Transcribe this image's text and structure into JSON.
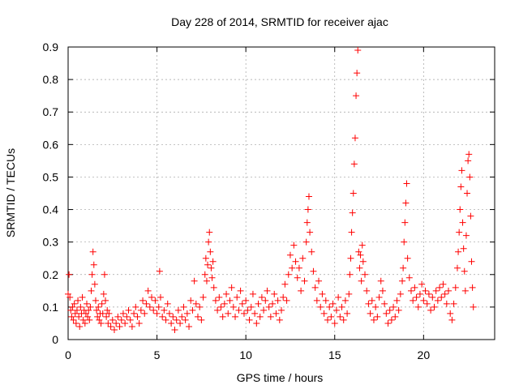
{
  "chart_data": {
    "type": "scatter",
    "title": "Day 228 of 2014, SRMTID for receiver ajac",
    "xlabel": "GPS time / hours",
    "ylabel": "SRMTID / TECUs",
    "xlim": [
      0,
      24
    ],
    "ylim": [
      0,
      0.9
    ],
    "x_ticks": [
      "0",
      "5",
      "10",
      "15",
      "20"
    ],
    "y_ticks": [
      "0",
      "0.1",
      "0.2",
      "0.3",
      "0.4",
      "0.5",
      "0.6",
      "0.7",
      "0.8",
      "0.9"
    ],
    "grid": true,
    "marker": "+",
    "color": "#ff0000",
    "series": [
      {
        "name": "ajac",
        "points": [
          [
            0.0,
            0.14
          ],
          [
            0.05,
            0.2
          ],
          [
            0.1,
            0.13
          ],
          [
            0.15,
            0.09
          ],
          [
            0.2,
            0.07
          ],
          [
            0.25,
            0.1
          ],
          [
            0.3,
            0.06
          ],
          [
            0.35,
            0.11
          ],
          [
            0.4,
            0.08
          ],
          [
            0.45,
            0.05
          ],
          [
            0.5,
            0.09
          ],
          [
            0.55,
            0.12
          ],
          [
            0.6,
            0.07
          ],
          [
            0.65,
            0.04
          ],
          [
            0.7,
            0.1
          ],
          [
            0.75,
            0.08
          ],
          [
            0.8,
            0.13
          ],
          [
            0.85,
            0.06
          ],
          [
            0.9,
            0.09
          ],
          [
            0.95,
            0.05
          ],
          [
            1.0,
            0.08
          ],
          [
            1.05,
            0.11
          ],
          [
            1.1,
            0.07
          ],
          [
            1.15,
            0.09
          ],
          [
            1.2,
            0.06
          ],
          [
            1.25,
            0.1
          ],
          [
            1.3,
            0.15
          ],
          [
            1.35,
            0.2
          ],
          [
            1.4,
            0.27
          ],
          [
            1.45,
            0.23
          ],
          [
            1.5,
            0.17
          ],
          [
            1.55,
            0.12
          ],
          [
            1.6,
            0.09
          ],
          [
            1.65,
            0.07
          ],
          [
            1.7,
            0.1
          ],
          [
            1.75,
            0.06
          ],
          [
            1.8,
            0.08
          ],
          [
            1.85,
            0.05
          ],
          [
            1.9,
            0.11
          ],
          [
            1.95,
            0.08
          ],
          [
            2.0,
            0.14
          ],
          [
            2.05,
            0.2
          ],
          [
            2.1,
            0.12
          ],
          [
            2.15,
            0.07
          ],
          [
            2.2,
            0.09
          ],
          [
            2.25,
            0.05
          ],
          [
            2.3,
            0.08
          ],
          [
            2.4,
            0.04
          ],
          [
            2.5,
            0.06
          ],
          [
            2.6,
            0.03
          ],
          [
            2.7,
            0.05
          ],
          [
            2.8,
            0.07
          ],
          [
            2.9,
            0.04
          ],
          [
            3.0,
            0.06
          ],
          [
            3.1,
            0.08
          ],
          [
            3.2,
            0.05
          ],
          [
            3.3,
            0.07
          ],
          [
            3.4,
            0.09
          ],
          [
            3.5,
            0.06
          ],
          [
            3.6,
            0.04
          ],
          [
            3.7,
            0.08
          ],
          [
            3.8,
            0.1
          ],
          [
            3.9,
            0.07
          ],
          [
            4.0,
            0.05
          ],
          [
            4.1,
            0.09
          ],
          [
            4.2,
            0.12
          ],
          [
            4.3,
            0.08
          ],
          [
            4.4,
            0.11
          ],
          [
            4.5,
            0.15
          ],
          [
            4.6,
            0.1
          ],
          [
            4.7,
            0.13
          ],
          [
            4.8,
            0.09
          ],
          [
            4.9,
            0.12
          ],
          [
            5.0,
            0.08
          ],
          [
            5.1,
            0.1
          ],
          [
            5.15,
            0.21
          ],
          [
            5.2,
            0.13
          ],
          [
            5.3,
            0.07
          ],
          [
            5.4,
            0.09
          ],
          [
            5.5,
            0.06
          ],
          [
            5.6,
            0.11
          ],
          [
            5.7,
            0.08
          ],
          [
            5.8,
            0.05
          ],
          [
            5.9,
            0.07
          ],
          [
            6.0,
            0.03
          ],
          [
            6.1,
            0.06
          ],
          [
            6.2,
            0.09
          ],
          [
            6.3,
            0.05
          ],
          [
            6.4,
            0.07
          ],
          [
            6.5,
            0.1
          ],
          [
            6.6,
            0.06
          ],
          [
            6.7,
            0.08
          ],
          [
            6.8,
            0.04
          ],
          [
            6.9,
            0.12
          ],
          [
            7.0,
            0.09
          ],
          [
            7.1,
            0.18
          ],
          [
            7.2,
            0.11
          ],
          [
            7.3,
            0.07
          ],
          [
            7.4,
            0.1
          ],
          [
            7.5,
            0.06
          ],
          [
            7.6,
            0.13
          ],
          [
            7.7,
            0.2
          ],
          [
            7.75,
            0.25
          ],
          [
            7.8,
            0.18
          ],
          [
            7.85,
            0.23
          ],
          [
            7.9,
            0.3
          ],
          [
            7.95,
            0.33
          ],
          [
            8.0,
            0.27
          ],
          [
            8.05,
            0.22
          ],
          [
            8.1,
            0.19
          ],
          [
            8.15,
            0.24
          ],
          [
            8.2,
            0.16
          ],
          [
            8.3,
            0.12
          ],
          [
            8.4,
            0.09
          ],
          [
            8.5,
            0.13
          ],
          [
            8.6,
            0.1
          ],
          [
            8.7,
            0.07
          ],
          [
            8.8,
            0.11
          ],
          [
            8.9,
            0.14
          ],
          [
            9.0,
            0.08
          ],
          [
            9.1,
            0.12
          ],
          [
            9.2,
            0.16
          ],
          [
            9.3,
            0.1
          ],
          [
            9.4,
            0.07
          ],
          [
            9.5,
            0.13
          ],
          [
            9.6,
            0.09
          ],
          [
            9.7,
            0.15
          ],
          [
            9.8,
            0.11
          ],
          [
            9.9,
            0.08
          ],
          [
            10.0,
            0.12
          ],
          [
            10.1,
            0.09
          ],
          [
            10.2,
            0.06
          ],
          [
            10.3,
            0.1
          ],
          [
            10.4,
            0.14
          ],
          [
            10.5,
            0.08
          ],
          [
            10.6,
            0.05
          ],
          [
            10.7,
            0.11
          ],
          [
            10.8,
            0.07
          ],
          [
            10.9,
            0.13
          ],
          [
            11.0,
            0.09
          ],
          [
            11.1,
            0.12
          ],
          [
            11.2,
            0.15
          ],
          [
            11.3,
            0.1
          ],
          [
            11.4,
            0.07
          ],
          [
            11.5,
            0.11
          ],
          [
            11.6,
            0.14
          ],
          [
            11.7,
            0.08
          ],
          [
            11.8,
            0.12
          ],
          [
            11.9,
            0.06
          ],
          [
            12.0,
            0.09
          ],
          [
            12.1,
            0.13
          ],
          [
            12.2,
            0.17
          ],
          [
            12.3,
            0.12
          ],
          [
            12.4,
            0.2
          ],
          [
            12.5,
            0.26
          ],
          [
            12.6,
            0.22
          ],
          [
            12.7,
            0.29
          ],
          [
            12.8,
            0.24
          ],
          [
            12.9,
            0.19
          ],
          [
            13.0,
            0.22
          ],
          [
            13.1,
            0.15
          ],
          [
            13.2,
            0.25
          ],
          [
            13.3,
            0.18
          ],
          [
            13.4,
            0.3
          ],
          [
            13.45,
            0.36
          ],
          [
            13.5,
            0.4
          ],
          [
            13.55,
            0.44
          ],
          [
            13.6,
            0.33
          ],
          [
            13.7,
            0.27
          ],
          [
            13.8,
            0.21
          ],
          [
            13.9,
            0.16
          ],
          [
            14.0,
            0.12
          ],
          [
            14.1,
            0.18
          ],
          [
            14.2,
            0.1
          ],
          [
            14.3,
            0.14
          ],
          [
            14.4,
            0.08
          ],
          [
            14.5,
            0.12
          ],
          [
            14.6,
            0.06
          ],
          [
            14.7,
            0.1
          ],
          [
            14.8,
            0.07
          ],
          [
            14.9,
            0.11
          ],
          [
            15.0,
            0.05
          ],
          [
            15.1,
            0.09
          ],
          [
            15.2,
            0.13
          ],
          [
            15.3,
            0.07
          ],
          [
            15.4,
            0.1
          ],
          [
            15.5,
            0.06
          ],
          [
            15.6,
            0.12
          ],
          [
            15.7,
            0.08
          ],
          [
            15.8,
            0.14
          ],
          [
            15.85,
            0.2
          ],
          [
            15.9,
            0.25
          ],
          [
            15.95,
            0.33
          ],
          [
            16.0,
            0.39
          ],
          [
            16.05,
            0.45
          ],
          [
            16.1,
            0.54
          ],
          [
            16.15,
            0.62
          ],
          [
            16.2,
            0.75
          ],
          [
            16.25,
            0.82
          ],
          [
            16.3,
            0.89
          ],
          [
            16.35,
            0.27
          ],
          [
            16.4,
            0.22
          ],
          [
            16.45,
            0.26
          ],
          [
            16.5,
            0.18
          ],
          [
            16.55,
            0.29
          ],
          [
            16.6,
            0.24
          ],
          [
            16.7,
            0.2
          ],
          [
            16.8,
            0.15
          ],
          [
            16.9,
            0.11
          ],
          [
            17.0,
            0.08
          ],
          [
            17.1,
            0.12
          ],
          [
            17.2,
            0.06
          ],
          [
            17.3,
            0.1
          ],
          [
            17.4,
            0.07
          ],
          [
            17.5,
            0.13
          ],
          [
            17.6,
            0.18
          ],
          [
            17.7,
            0.15
          ],
          [
            17.8,
            0.11
          ],
          [
            17.9,
            0.08
          ],
          [
            18.0,
            0.05
          ],
          [
            18.1,
            0.09
          ],
          [
            18.2,
            0.06
          ],
          [
            18.3,
            0.1
          ],
          [
            18.4,
            0.07
          ],
          [
            18.5,
            0.12
          ],
          [
            18.6,
            0.09
          ],
          [
            18.7,
            0.14
          ],
          [
            18.8,
            0.18
          ],
          [
            18.85,
            0.22
          ],
          [
            18.9,
            0.3
          ],
          [
            18.95,
            0.36
          ],
          [
            19.0,
            0.42
          ],
          [
            19.05,
            0.48
          ],
          [
            19.1,
            0.25
          ],
          [
            19.2,
            0.19
          ],
          [
            19.3,
            0.15
          ],
          [
            19.4,
            0.12
          ],
          [
            19.5,
            0.16
          ],
          [
            19.6,
            0.13
          ],
          [
            19.7,
            0.1
          ],
          [
            19.8,
            0.14
          ],
          [
            19.9,
            0.17
          ],
          [
            20.0,
            0.12
          ],
          [
            20.1,
            0.15
          ],
          [
            20.2,
            0.11
          ],
          [
            20.3,
            0.14
          ],
          [
            20.4,
            0.09
          ],
          [
            20.5,
            0.13
          ],
          [
            20.6,
            0.1
          ],
          [
            20.7,
            0.15
          ],
          [
            20.8,
            0.12
          ],
          [
            20.9,
            0.16
          ],
          [
            21.0,
            0.13
          ],
          [
            21.1,
            0.17
          ],
          [
            21.2,
            0.14
          ],
          [
            21.3,
            0.11
          ],
          [
            21.4,
            0.15
          ],
          [
            21.5,
            0.08
          ],
          [
            21.6,
            0.06
          ],
          [
            21.7,
            0.11
          ],
          [
            21.8,
            0.16
          ],
          [
            21.9,
            0.22
          ],
          [
            21.95,
            0.27
          ],
          [
            22.0,
            0.33
          ],
          [
            22.05,
            0.4
          ],
          [
            22.1,
            0.47
          ],
          [
            22.15,
            0.52
          ],
          [
            22.2,
            0.36
          ],
          [
            22.25,
            0.28
          ],
          [
            22.3,
            0.21
          ],
          [
            22.35,
            0.15
          ],
          [
            22.4,
            0.32
          ],
          [
            22.45,
            0.45
          ],
          [
            22.5,
            0.55
          ],
          [
            22.55,
            0.57
          ],
          [
            22.6,
            0.5
          ],
          [
            22.65,
            0.38
          ],
          [
            22.7,
            0.24
          ],
          [
            22.75,
            0.16
          ],
          [
            22.8,
            0.1
          ]
        ]
      }
    ]
  }
}
